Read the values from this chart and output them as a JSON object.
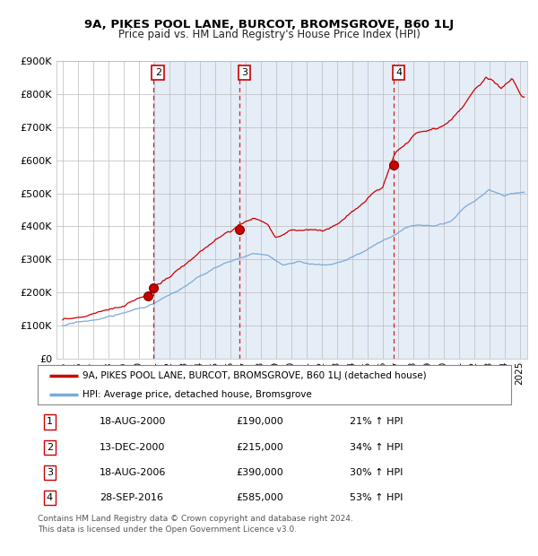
{
  "title": "9A, PIKES POOL LANE, BURCOT, BROMSGROVE, B60 1LJ",
  "subtitle": "Price paid vs. HM Land Registry's House Price Index (HPI)",
  "legend_line1": "9A, PIKES POOL LANE, BURCOT, BROMSGROVE, B60 1LJ (detached house)",
  "legend_line2": "HPI: Average price, detached house, Bromsgrove",
  "footer1": "Contains HM Land Registry data © Crown copyright and database right 2024.",
  "footer2": "This data is licensed under the Open Government Licence v3.0.",
  "transactions": [
    {
      "num": 1,
      "year_x": 2000.63,
      "price": 190000
    },
    {
      "num": 2,
      "year_x": 2000.96,
      "price": 215000
    },
    {
      "num": 3,
      "year_x": 2006.63,
      "price": 390000
    },
    {
      "num": 4,
      "year_x": 2016.75,
      "price": 585000
    }
  ],
  "table_rows": [
    {
      "num": 1,
      "date": "18-AUG-2000",
      "price": "£190,000",
      "pct": "21% ↑ HPI"
    },
    {
      "num": 2,
      "date": "13-DEC-2000",
      "price": "£215,000",
      "pct": "34% ↑ HPI"
    },
    {
      "num": 3,
      "date": "18-AUG-2006",
      "price": "£390,000",
      "pct": "30% ↑ HPI"
    },
    {
      "num": 4,
      "date": "28-SEP-2016",
      "price": "£585,000",
      "pct": "53% ↑ HPI"
    }
  ],
  "red_color": "#cc0000",
  "blue_color": "#7aaadd",
  "bg_span_color": "#ccddf0",
  "grid_color": "#bbbbbb",
  "ylim": [
    0,
    900000
  ],
  "xlim_start": 1994.6,
  "xlim_end": 2025.5,
  "yticks": [
    0,
    100000,
    200000,
    300000,
    400000,
    500000,
    600000,
    700000,
    800000,
    900000
  ],
  "ytick_labels": [
    "£0",
    "£100K",
    "£200K",
    "£300K",
    "£400K",
    "£500K",
    "£600K",
    "£700K",
    "£800K",
    "£900K"
  ],
  "xticks": [
    1995,
    1996,
    1997,
    1998,
    1999,
    2000,
    2001,
    2002,
    2003,
    2004,
    2005,
    2006,
    2007,
    2008,
    2009,
    2010,
    2011,
    2012,
    2013,
    2014,
    2015,
    2016,
    2017,
    2018,
    2019,
    2020,
    2021,
    2022,
    2023,
    2024,
    2025
  ]
}
